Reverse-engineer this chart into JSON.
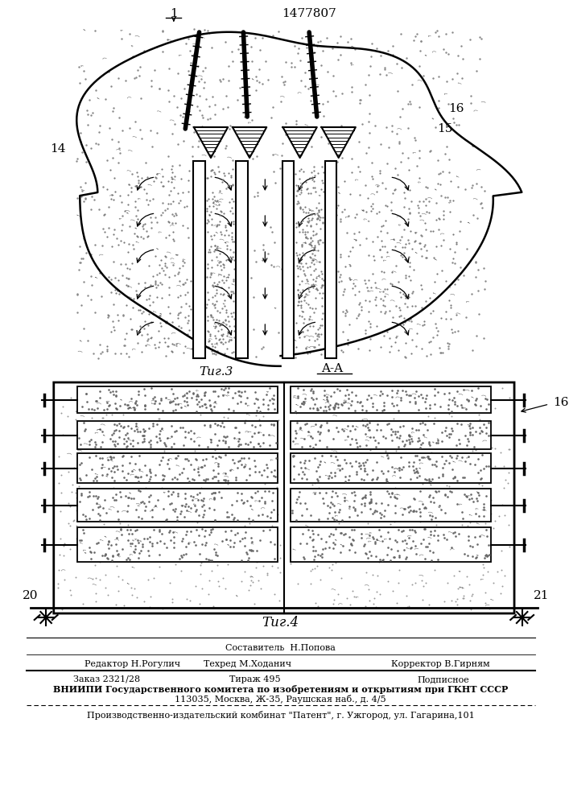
{
  "patent_number": "1477807",
  "fig3_label": "Τиг.3",
  "fig4_label": "Τиг.4",
  "aa_label": "A-A",
  "label_1": "1",
  "label_14": "14",
  "label_15": "15",
  "label_16_fig3": "16",
  "label_16_fig4": "16",
  "label_20": "20",
  "label_21": "21",
  "footer_sestavitel": "Составитель  Н.Попова",
  "footer_editor": "Редактор Н.Рогулич",
  "footer_tehred": "Техред М.Ходанич",
  "footer_korrektor": "Корректор В.Гирням",
  "footer_zakaz": "Заказ 2321/28",
  "footer_tirazh": "Тираж 495",
  "footer_podpisnoe": "Подписное",
  "footer_vniipи": "ВНИИПИ Государственного комитета по изобретениям и открытиям при ГКНТ СССР",
  "footer_addr": "113035, Москва, Ж-35, Раушская наб., д. 4/5",
  "footer_patent": "Производственно-издательский комбинат \"Патент\", г. Ужгород, ул. Гагарина,101",
  "bg_color": "#ffffff"
}
